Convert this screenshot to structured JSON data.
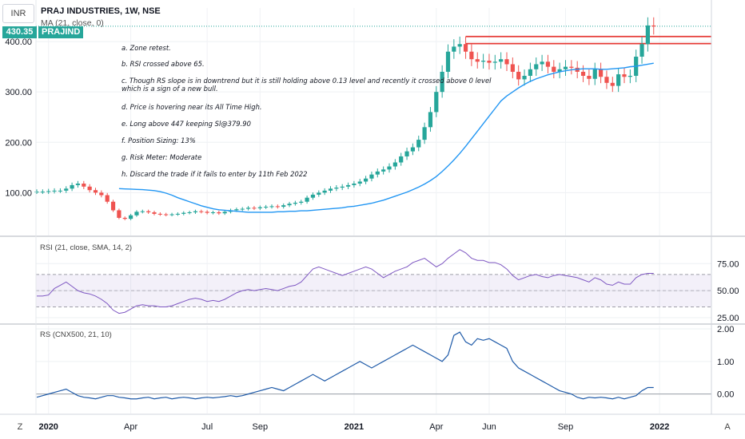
{
  "header": {
    "currency": "INR",
    "title": "PRAJ INDUSTRIES, 1W, NSE",
    "ma_label": "MA (21, close, 0)",
    "price_tag": "430.35",
    "symbol_tag": "PRAJIND"
  },
  "notes": [
    "a. Zone retest.",
    "b. RSI crossed above 65.",
    "c. Though RS slope is in downtrend but it is still holding above 0.13 level and recently it crossed above 0 level\nwhich is a sign of a new bull.",
    "d. Price is hovering near its All Time High.",
    "e. Long above 447 keeping Sl@379.90",
    "f. Position Sizing: 13%",
    "g. Risk Meter: Moderate",
    "h. Discard the trade if it fails to enter by 11th Feb 2022"
  ],
  "bottom": {
    "left_button": "Z",
    "right_button": "A"
  },
  "colors": {
    "up": "#26a69a",
    "down": "#ef5350",
    "ma": "#2196f3",
    "rsi": "#7e57c2",
    "rs": "#1e5aa8",
    "zone": "#e53935"
  },
  "chart_data": {
    "type": "candlestick",
    "price_pane": {
      "y_ticks": [
        "100.00",
        "200.00",
        "300.00",
        "400.00"
      ],
      "y_tick_values": [
        100,
        200,
        300,
        400
      ],
      "ylim": [
        15,
        435
      ],
      "resistance_zone": [
        396,
        410
      ],
      "last_price": 430.35
    },
    "x_ticks": [
      {
        "label": "2020",
        "i": 2,
        "bold": true
      },
      {
        "label": "Apr",
        "i": 16,
        "bold": false
      },
      {
        "label": "Jul",
        "i": 29,
        "bold": false
      },
      {
        "label": "Sep",
        "i": 38,
        "bold": false
      },
      {
        "label": "2021",
        "i": 54,
        "bold": true
      },
      {
        "label": "Apr",
        "i": 68,
        "bold": false
      },
      {
        "label": "Jun",
        "i": 77,
        "bold": false
      },
      {
        "label": "Sep",
        "i": 90,
        "bold": false
      },
      {
        "label": "2022",
        "i": 106,
        "bold": true
      }
    ],
    "close": [
      102,
      102,
      103,
      104,
      104,
      108,
      115,
      118,
      112,
      105,
      100,
      95,
      82,
      65,
      50,
      48,
      55,
      62,
      63,
      61,
      58,
      57,
      56,
      57,
      58,
      60,
      61,
      63,
      62,
      60,
      61,
      59,
      62,
      65,
      67,
      68,
      70,
      69,
      71,
      72,
      73,
      72,
      75,
      78,
      80,
      82,
      90,
      96,
      100,
      104,
      108,
      110,
      112,
      115,
      118,
      122,
      128,
      136,
      142,
      146,
      152,
      160,
      172,
      182,
      190,
      205,
      230,
      260,
      300,
      340,
      380,
      390,
      395,
      380,
      365,
      360,
      362,
      358,
      360,
      365,
      355,
      340,
      325,
      332,
      345,
      355,
      360,
      350,
      340,
      345,
      350,
      348,
      340,
      332,
      326,
      345,
      330,
      318,
      312,
      335,
      330,
      332,
      370,
      395,
      432,
      430
    ],
    "ma21": [
      108,
      107.5,
      107,
      106.5,
      106,
      105,
      104,
      102,
      99,
      95,
      90,
      86,
      82,
      78,
      74,
      71,
      68,
      66,
      65,
      64,
      63,
      62,
      61,
      61,
      61,
      61,
      61,
      62,
      62,
      63,
      63,
      64,
      64,
      65,
      66,
      67,
      68,
      69,
      70,
      72,
      73,
      75,
      77,
      79,
      82,
      85,
      89,
      93,
      97,
      101,
      106,
      111,
      117,
      124,
      132,
      142,
      153,
      165,
      178,
      192,
      207,
      222,
      237,
      252,
      267,
      282,
      292,
      300,
      308,
      315,
      321,
      326,
      330,
      334,
      337,
      340,
      342,
      344,
      345,
      346,
      346,
      346,
      345,
      345,
      346,
      347,
      348,
      350,
      351,
      353,
      355,
      357
    ],
    "rsi_pane": {
      "y_ticks": [
        "25.00",
        "50.00",
        "75.00"
      ],
      "y_tick_values": [
        25,
        50,
        75
      ],
      "ylim": [
        25,
        90
      ],
      "band": [
        35,
        65
      ],
      "mid": 50,
      "title": "RSI (21, close, SMA, 14, 2)",
      "values": [
        45,
        45,
        46,
        52,
        55,
        58,
        54,
        50,
        48,
        47,
        45,
        42,
        38,
        32,
        29,
        30,
        33,
        36,
        37,
        36,
        36,
        35,
        35,
        36,
        38,
        40,
        42,
        43,
        42,
        40,
        41,
        40,
        42,
        45,
        48,
        50,
        51,
        50,
        51,
        52,
        51,
        50,
        52,
        54,
        55,
        58,
        64,
        70,
        72,
        70,
        68,
        66,
        64,
        66,
        68,
        70,
        72,
        70,
        66,
        62,
        65,
        68,
        70,
        72,
        76,
        78,
        80,
        76,
        72,
        75,
        80,
        84,
        88,
        85,
        80,
        78,
        78,
        76,
        76,
        74,
        70,
        64,
        60,
        62,
        64,
        65,
        63,
        62,
        64,
        65,
        64,
        63,
        62,
        60,
        58,
        62,
        60,
        56,
        55,
        58,
        56,
        56,
        62,
        65,
        66,
        66
      ]
    },
    "rs_pane": {
      "y_ticks": [
        "0.00",
        "1.00",
        "2.00"
      ],
      "y_tick_values": [
        0,
        1,
        2
      ],
      "ylim": [
        -0.45,
        2.0
      ],
      "title": "RS (CNX500, 21, 10)",
      "values": [
        -0.1,
        -0.05,
        0,
        0.05,
        0.1,
        0.15,
        0.05,
        -0.05,
        -0.1,
        -0.12,
        -0.15,
        -0.1,
        -0.05,
        -0.05,
        -0.1,
        -0.12,
        -0.15,
        -0.15,
        -0.12,
        -0.1,
        -0.15,
        -0.12,
        -0.1,
        -0.15,
        -0.12,
        -0.1,
        -0.12,
        -0.15,
        -0.12,
        -0.1,
        -0.12,
        -0.1,
        -0.08,
        -0.05,
        -0.08,
        -0.05,
        0,
        0.05,
        0.1,
        0.15,
        0.2,
        0.15,
        0.1,
        0.2,
        0.3,
        0.4,
        0.5,
        0.6,
        0.5,
        0.4,
        0.5,
        0.6,
        0.7,
        0.8,
        0.9,
        1.0,
        0.9,
        0.8,
        0.9,
        1.0,
        1.1,
        1.2,
        1.3,
        1.4,
        1.5,
        1.4,
        1.3,
        1.2,
        1.1,
        1.0,
        1.2,
        1.8,
        1.9,
        1.6,
        1.5,
        1.7,
        1.65,
        1.7,
        1.6,
        1.5,
        1.4,
        1.0,
        0.8,
        0.7,
        0.6,
        0.5,
        0.4,
        0.3,
        0.2,
        0.1,
        0.05,
        0,
        -0.1,
        -0.15,
        -0.1,
        -0.12,
        -0.1,
        -0.12,
        -0.15,
        -0.1,
        -0.15,
        -0.1,
        -0.05,
        0.1,
        0.2,
        0.2
      ]
    }
  }
}
